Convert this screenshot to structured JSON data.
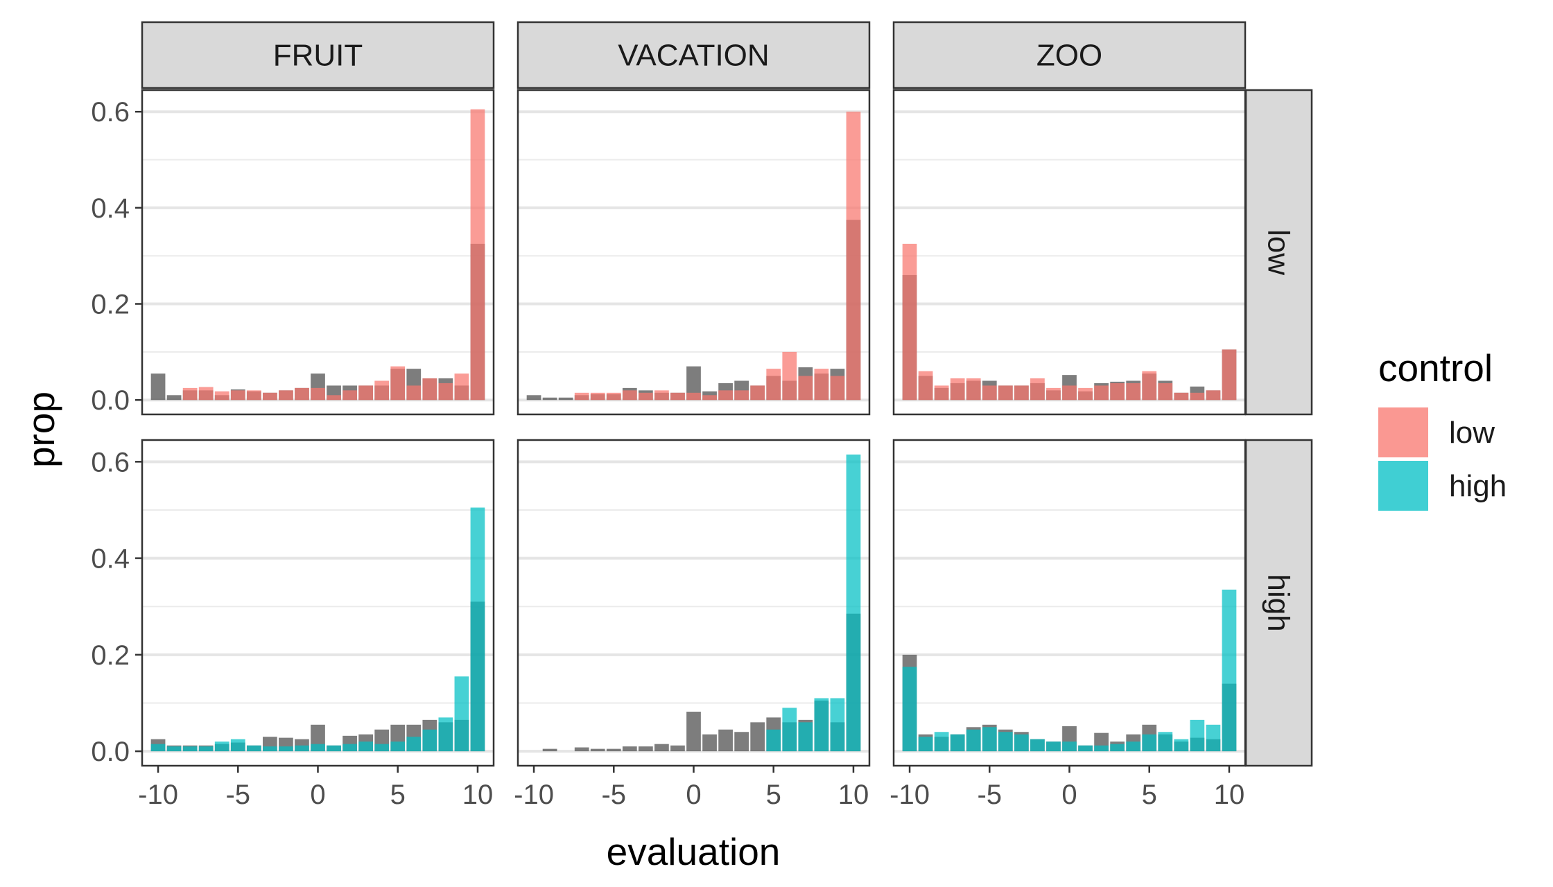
{
  "chart_data": {
    "type": "bar",
    "xlabel": "evaluation",
    "ylabel": "prop",
    "xlim": [
      -11,
      11
    ],
    "ylim": [
      -0.03,
      0.645
    ],
    "x_ticks": [
      -10,
      -5,
      0,
      5,
      10
    ],
    "y_ticks": [
      0.0,
      0.2,
      0.4,
      0.6
    ],
    "y_tick_labels": [
      "0.0",
      "0.2",
      "0.4",
      "0.6"
    ],
    "columns": [
      "FRUIT",
      "VACATION",
      "ZOO"
    ],
    "rows": [
      "low",
      "high"
    ],
    "x": [
      -10,
      -9,
      -8,
      -7,
      -6,
      -5,
      -4,
      -3,
      -2,
      -1,
      0,
      1,
      2,
      3,
      4,
      5,
      6,
      7,
      8,
      9,
      10
    ],
    "legend": {
      "title": "control",
      "position": "right",
      "entries": [
        {
          "label": "low",
          "color": "#F8766D"
        },
        {
          "label": "high",
          "color": "#00BFC4"
        }
      ]
    },
    "background_series_color": "#595959",
    "panels": [
      {
        "column": "FRUIT",
        "row": "low",
        "colored": [
          0,
          0,
          0.025,
          0.027,
          0.018,
          0.02,
          0.02,
          0.015,
          0.02,
          0.025,
          0.025,
          0.01,
          0.02,
          0.03,
          0.04,
          0.07,
          0.03,
          0.045,
          0.035,
          0.055,
          0.605
        ],
        "grey": [
          0.055,
          0.01,
          0.02,
          0.02,
          0.01,
          0.022,
          0.018,
          0.015,
          0.02,
          0.025,
          0.055,
          0.03,
          0.03,
          0.03,
          0.03,
          0.065,
          0.065,
          0.045,
          0.045,
          0.03,
          0.325
        ]
      },
      {
        "column": "VACATION",
        "row": "low",
        "colored": [
          0,
          0,
          0,
          0.015,
          0.015,
          0.015,
          0.02,
          0.015,
          0.02,
          0.015,
          0.015,
          0.01,
          0.02,
          0.02,
          0.03,
          0.065,
          0.1,
          0.05,
          0.065,
          0.05,
          0.6
        ],
        "grey": [
          0.01,
          0.005,
          0.005,
          0.01,
          0.012,
          0.012,
          0.025,
          0.02,
          0.015,
          0.015,
          0.07,
          0.018,
          0.035,
          0.04,
          0.03,
          0.05,
          0.04,
          0.068,
          0.055,
          0.065,
          0.375
        ]
      },
      {
        "column": "ZOO",
        "row": "low",
        "colored": [
          0.325,
          0.06,
          0.03,
          0.045,
          0.045,
          0.03,
          0.03,
          0.03,
          0.045,
          0.025,
          0.03,
          0.025,
          0.03,
          0.035,
          0.035,
          0.06,
          0.035,
          0.015,
          0.015,
          0.02,
          0.105
        ],
        "grey": [
          0.26,
          0.05,
          0.025,
          0.035,
          0.04,
          0.04,
          0.03,
          0.03,
          0.035,
          0.02,
          0.052,
          0.018,
          0.035,
          0.038,
          0.04,
          0.055,
          0.04,
          0.015,
          0.028,
          0.02,
          0.105
        ]
      },
      {
        "column": "FRUIT",
        "row": "high",
        "colored": [
          0.015,
          0.01,
          0.01,
          0.01,
          0.02,
          0.025,
          0.012,
          0.01,
          0.01,
          0.012,
          0.015,
          0.012,
          0.015,
          0.02,
          0.015,
          0.02,
          0.03,
          0.045,
          0.07,
          0.155,
          0.505
        ],
        "grey": [
          0.025,
          0.012,
          0.012,
          0.012,
          0.015,
          0.018,
          0.012,
          0.03,
          0.028,
          0.025,
          0.055,
          0.012,
          0.032,
          0.035,
          0.045,
          0.055,
          0.055,
          0.065,
          0.06,
          0.065,
          0.31
        ]
      },
      {
        "column": "VACATION",
        "row": "high",
        "colored": [
          0,
          0,
          0,
          0,
          0,
          0,
          0,
          0,
          0,
          0,
          0,
          0,
          0,
          0,
          0,
          0.045,
          0.09,
          0.06,
          0.11,
          0.11,
          0.615
        ],
        "grey": [
          0,
          0.005,
          0,
          0.008,
          0.005,
          0.005,
          0.01,
          0.01,
          0.015,
          0.012,
          0.082,
          0.035,
          0.045,
          0.04,
          0.06,
          0.07,
          0.06,
          0.065,
          0.105,
          0.06,
          0.285
        ]
      },
      {
        "column": "ZOO",
        "row": "high",
        "colored": [
          0.175,
          0.03,
          0.04,
          0.035,
          0.045,
          0.05,
          0.04,
          0.035,
          0.025,
          0.02,
          0.02,
          0.012,
          0.012,
          0.015,
          0.02,
          0.035,
          0.04,
          0.025,
          0.065,
          0.055,
          0.335
        ],
        "grey": [
          0.2,
          0.035,
          0.03,
          0.035,
          0.05,
          0.055,
          0.045,
          0.04,
          0.025,
          0.02,
          0.052,
          0.012,
          0.038,
          0.02,
          0.035,
          0.055,
          0.035,
          0.02,
          0.028,
          0.025,
          0.14
        ]
      }
    ]
  }
}
